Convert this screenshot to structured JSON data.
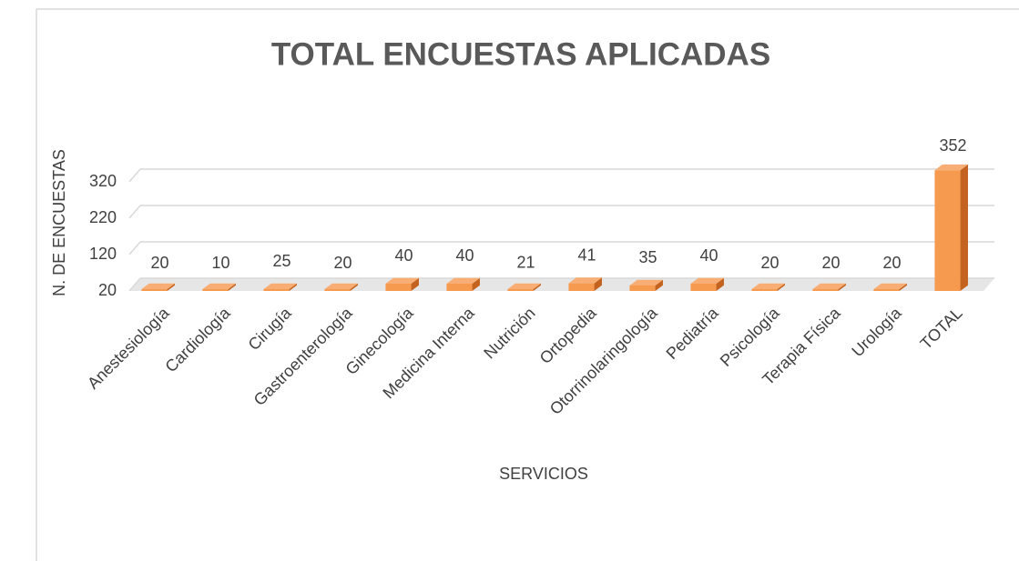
{
  "chart_data": {
    "type": "bar3d",
    "title": "TOTAL ENCUESTAS APLICADAS",
    "xlabel": "SERVICIOS",
    "ylabel": "N. DE ENCUESTAS",
    "categories": [
      "Anestesiología",
      "Cardiología",
      "Cirugía",
      "Gastroenterología",
      "Ginecología",
      "Medicina Interna",
      "Nutrición",
      "Ortopedia",
      "Otorrinolaringología",
      "Pediatría",
      "Psicología",
      "Terapia Física",
      "Urología",
      "TOTAL"
    ],
    "values": [
      20,
      10,
      25,
      20,
      40,
      40,
      21,
      41,
      35,
      40,
      20,
      20,
      20,
      352
    ],
    "color": "#f59a4f",
    "ylim": [
      20,
      370
    ],
    "yticks": [
      20,
      120,
      220,
      320
    ],
    "grid": true
  }
}
